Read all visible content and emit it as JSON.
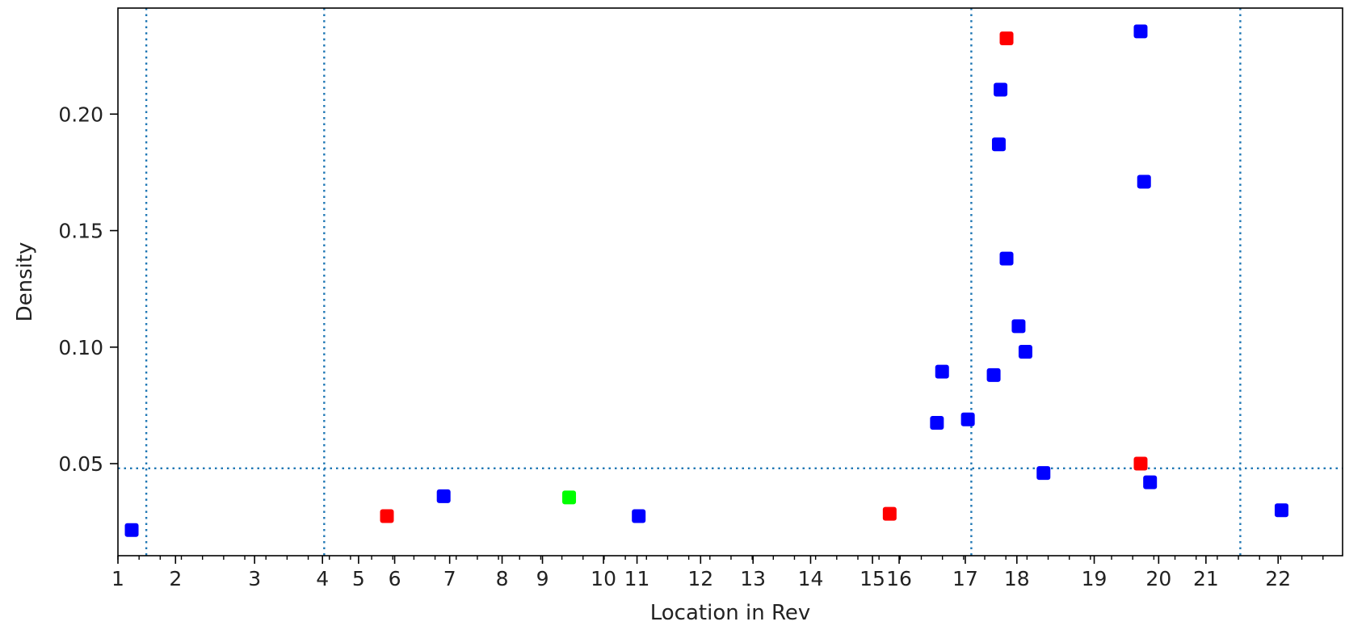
{
  "chart_data": {
    "type": "scatter",
    "title": "",
    "xlabel": "Location in Rev",
    "ylabel": "Density",
    "ylim": [
      0.0105,
      0.2455
    ],
    "yticks": [
      0.05,
      0.1,
      0.15,
      0.2
    ],
    "ytick_labels": [
      "0.05",
      "0.10",
      "0.15",
      "0.20"
    ],
    "xticks": [
      {
        "label": "1",
        "pos": 0
      },
      {
        "label": "2",
        "pos": 67
      },
      {
        "label": "3",
        "pos": 159
      },
      {
        "label": "4",
        "pos": 238
      },
      {
        "label": "5",
        "pos": 280
      },
      {
        "label": "6",
        "pos": 322
      },
      {
        "label": "7",
        "pos": 386
      },
      {
        "label": "8",
        "pos": 447
      },
      {
        "label": "9",
        "pos": 494
      },
      {
        "label": "10",
        "pos": 565
      },
      {
        "label": "11",
        "pos": 604
      },
      {
        "label": "12",
        "pos": 678
      },
      {
        "label": "13",
        "pos": 739
      },
      {
        "label": "14",
        "pos": 806
      },
      {
        "label": "15",
        "pos": 878
      },
      {
        "label": "16",
        "pos": 909
      },
      {
        "label": "17",
        "pos": 986
      },
      {
        "label": "18",
        "pos": 1046
      },
      {
        "label": "19",
        "pos": 1136
      },
      {
        "label": "20",
        "pos": 1211
      },
      {
        "label": "21",
        "pos": 1266
      },
      {
        "label": "22",
        "pos": 1350
      }
    ],
    "xlim": [
      0,
      1425
    ],
    "minor_tick_step": 24.6,
    "vlines": [
      33,
      240,
      993,
      1306
    ],
    "hline": 0.048,
    "reference_line_style": "dotted",
    "grid": false,
    "legend": "none",
    "colors": {
      "blue": "#0000ff",
      "red": "#ff0000",
      "green": "#00ff00",
      "ref_line": "#1f77b4"
    },
    "points": [
      {
        "x": 16,
        "y": 0.0215,
        "color": "blue"
      },
      {
        "x": 313,
        "y": 0.0275,
        "color": "red"
      },
      {
        "x": 379,
        "y": 0.036,
        "color": "blue"
      },
      {
        "x": 525,
        "y": 0.0355,
        "color": "green"
      },
      {
        "x": 606,
        "y": 0.0275,
        "color": "blue"
      },
      {
        "x": 898,
        "y": 0.0285,
        "color": "red"
      },
      {
        "x": 953,
        "y": 0.0675,
        "color": "blue"
      },
      {
        "x": 959,
        "y": 0.0895,
        "color": "blue"
      },
      {
        "x": 989,
        "y": 0.069,
        "color": "blue"
      },
      {
        "x": 1019,
        "y": 0.088,
        "color": "blue"
      },
      {
        "x": 1025,
        "y": 0.187,
        "color": "blue"
      },
      {
        "x": 1027,
        "y": 0.2105,
        "color": "blue"
      },
      {
        "x": 1034,
        "y": 0.138,
        "color": "blue"
      },
      {
        "x": 1034,
        "y": 0.2325,
        "color": "red"
      },
      {
        "x": 1048,
        "y": 0.109,
        "color": "blue"
      },
      {
        "x": 1056,
        "y": 0.098,
        "color": "blue"
      },
      {
        "x": 1077,
        "y": 0.046,
        "color": "blue"
      },
      {
        "x": 1190,
        "y": 0.2355,
        "color": "blue"
      },
      {
        "x": 1190,
        "y": 0.05,
        "color": "red"
      },
      {
        "x": 1194,
        "y": 0.171,
        "color": "blue"
      },
      {
        "x": 1201,
        "y": 0.042,
        "color": "blue"
      },
      {
        "x": 1354,
        "y": 0.03,
        "color": "blue"
      }
    ]
  }
}
